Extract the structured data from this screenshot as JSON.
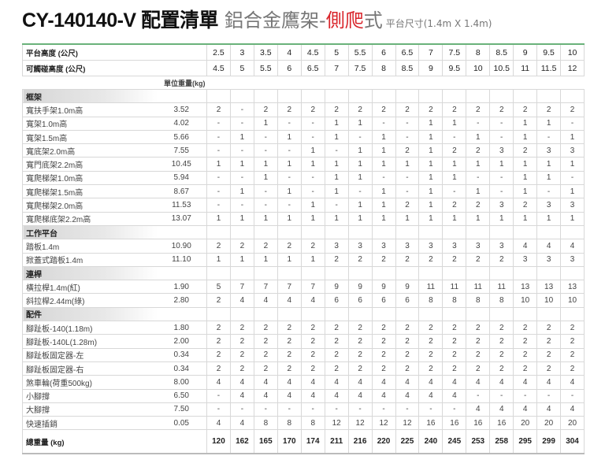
{
  "title": {
    "model": "CY-140140-V 配置清單",
    "subtitle": "鋁合金鷹架-",
    "highlight": "側爬",
    "suffix": "式",
    "size": "平台尺寸(1.4m X 1.4m)"
  },
  "colors": {
    "accent_red": "#d9252b",
    "header_line": "#6ab27a"
  },
  "header_rows": [
    {
      "label": "平台高度 (公尺)",
      "values": [
        "2.5",
        "3",
        "3.5",
        "4",
        "4.5",
        "5",
        "5.5",
        "6",
        "6.5",
        "7",
        "7.5",
        "8",
        "8.5",
        "9",
        "9.5",
        "10"
      ]
    },
    {
      "label": "可觸碰高度 (公尺)",
      "values": [
        "4.5",
        "5",
        "5.5",
        "6",
        "6.5",
        "7",
        "7.5",
        "8",
        "8.5",
        "9",
        "9.5",
        "10",
        "10.5",
        "11",
        "11.5",
        "12"
      ]
    }
  ],
  "unit_label": "單位重量(kg)",
  "sections": [
    {
      "label": "框架",
      "items": [
        {
          "name": "寬扶手架1.0m高",
          "weight": "3.52",
          "q": [
            "2",
            "-",
            "2",
            "2",
            "2",
            "2",
            "2",
            "2",
            "2",
            "2",
            "2",
            "2",
            "2",
            "2",
            "2",
            "2"
          ]
        },
        {
          "name": "寬架1.0m高",
          "weight": "4.02",
          "q": [
            "-",
            "-",
            "1",
            "-",
            "-",
            "1",
            "1",
            "-",
            "-",
            "1",
            "1",
            "-",
            "-",
            "1",
            "1",
            "-"
          ]
        },
        {
          "name": "寬架1.5m高",
          "weight": "5.66",
          "q": [
            "-",
            "1",
            "-",
            "1",
            "-",
            "1",
            "-",
            "1",
            "-",
            "1",
            "-",
            "1",
            "-",
            "1",
            "-",
            "1"
          ]
        },
        {
          "name": "寬底架2.0m高",
          "weight": "7.55",
          "q": [
            "-",
            "-",
            "-",
            "-",
            "1",
            "-",
            "1",
            "1",
            "2",
            "1",
            "2",
            "2",
            "3",
            "2",
            "3",
            "3"
          ]
        },
        {
          "name": "寬門底架2.2m高",
          "weight": "10.45",
          "q": [
            "1",
            "1",
            "1",
            "1",
            "1",
            "1",
            "1",
            "1",
            "1",
            "1",
            "1",
            "1",
            "1",
            "1",
            "1",
            "1"
          ]
        },
        {
          "name": "寬爬梯架1.0m高",
          "weight": "5.94",
          "q": [
            "-",
            "-",
            "1",
            "-",
            "-",
            "1",
            "1",
            "-",
            "-",
            "1",
            "1",
            "-",
            "-",
            "1",
            "1",
            "-"
          ]
        },
        {
          "name": "寬爬梯架1.5m高",
          "weight": "8.67",
          "q": [
            "-",
            "1",
            "-",
            "1",
            "-",
            "1",
            "-",
            "1",
            "-",
            "1",
            "-",
            "1",
            "-",
            "1",
            "-",
            "1"
          ]
        },
        {
          "name": "寬爬梯架2.0m高",
          "weight": "11.53",
          "q": [
            "-",
            "-",
            "-",
            "-",
            "1",
            "-",
            "1",
            "1",
            "2",
            "1",
            "2",
            "2",
            "3",
            "2",
            "3",
            "3"
          ]
        },
        {
          "name": "寬爬梯底架2.2m高",
          "weight": "13.07",
          "q": [
            "1",
            "1",
            "1",
            "1",
            "1",
            "1",
            "1",
            "1",
            "1",
            "1",
            "1",
            "1",
            "1",
            "1",
            "1",
            "1"
          ]
        }
      ]
    },
    {
      "label": "工作平台",
      "items": [
        {
          "name": "踏板1.4m",
          "weight": "10.90",
          "q": [
            "2",
            "2",
            "2",
            "2",
            "2",
            "3",
            "3",
            "3",
            "3",
            "3",
            "3",
            "3",
            "3",
            "4",
            "4",
            "4"
          ]
        },
        {
          "name": "掀蓋式踏板1.4m",
          "weight": "11.10",
          "q": [
            "1",
            "1",
            "1",
            "1",
            "1",
            "2",
            "2",
            "2",
            "2",
            "2",
            "2",
            "2",
            "2",
            "3",
            "3",
            "3"
          ]
        }
      ]
    },
    {
      "label": "連桿",
      "items": [
        {
          "name": "橫拉桿1.4m(紅)",
          "weight": "1.90",
          "q": [
            "5",
            "7",
            "7",
            "7",
            "7",
            "9",
            "9",
            "9",
            "9",
            "11",
            "11",
            "11",
            "11",
            "13",
            "13",
            "13"
          ]
        },
        {
          "name": "斜拉桿2.44m(綠)",
          "weight": "2.80",
          "q": [
            "2",
            "4",
            "4",
            "4",
            "4",
            "6",
            "6",
            "6",
            "6",
            "8",
            "8",
            "8",
            "8",
            "10",
            "10",
            "10"
          ]
        }
      ]
    },
    {
      "label": "配件",
      "items": [
        {
          "name": "腳趾板-140(1.18m)",
          "weight": "1.80",
          "q": [
            "2",
            "2",
            "2",
            "2",
            "2",
            "2",
            "2",
            "2",
            "2",
            "2",
            "2",
            "2",
            "2",
            "2",
            "2",
            "2"
          ]
        },
        {
          "name": "腳趾板-140L(1.28m)",
          "weight": "2.00",
          "q": [
            "2",
            "2",
            "2",
            "2",
            "2",
            "2",
            "2",
            "2",
            "2",
            "2",
            "2",
            "2",
            "2",
            "2",
            "2",
            "2"
          ]
        },
        {
          "name": "腳趾板固定器-左",
          "weight": "0.34",
          "q": [
            "2",
            "2",
            "2",
            "2",
            "2",
            "2",
            "2",
            "2",
            "2",
            "2",
            "2",
            "2",
            "2",
            "2",
            "2",
            "2"
          ]
        },
        {
          "name": "腳趾板固定器-右",
          "weight": "0.34",
          "q": [
            "2",
            "2",
            "2",
            "2",
            "2",
            "2",
            "2",
            "2",
            "2",
            "2",
            "2",
            "2",
            "2",
            "2",
            "2",
            "2"
          ]
        },
        {
          "name": "煞車輪(荷重500kg)",
          "weight": "8.00",
          "q": [
            "4",
            "4",
            "4",
            "4",
            "4",
            "4",
            "4",
            "4",
            "4",
            "4",
            "4",
            "4",
            "4",
            "4",
            "4",
            "4"
          ]
        },
        {
          "name": "小腳撐",
          "weight": "6.50",
          "q": [
            "-",
            "4",
            "4",
            "4",
            "4",
            "4",
            "4",
            "4",
            "4",
            "4",
            "4",
            "-",
            "-",
            "-",
            "-",
            "-"
          ]
        },
        {
          "name": "大腳撐",
          "weight": "7.50",
          "q": [
            "-",
            "-",
            "-",
            "-",
            "-",
            "-",
            "-",
            "-",
            "-",
            "-",
            "-",
            "4",
            "4",
            "4",
            "4",
            "4"
          ]
        },
        {
          "name": "快速插銷",
          "weight": "0.05",
          "q": [
            "4",
            "4",
            "8",
            "8",
            "8",
            "12",
            "12",
            "12",
            "12",
            "16",
            "16",
            "16",
            "16",
            "20",
            "20",
            "20"
          ]
        }
      ]
    }
  ],
  "total": {
    "label": "總重量 (kg)",
    "values": [
      "120",
      "162",
      "165",
      "170",
      "174",
      "211",
      "216",
      "220",
      "225",
      "240",
      "245",
      "253",
      "258",
      "295",
      "299",
      "304"
    ]
  }
}
